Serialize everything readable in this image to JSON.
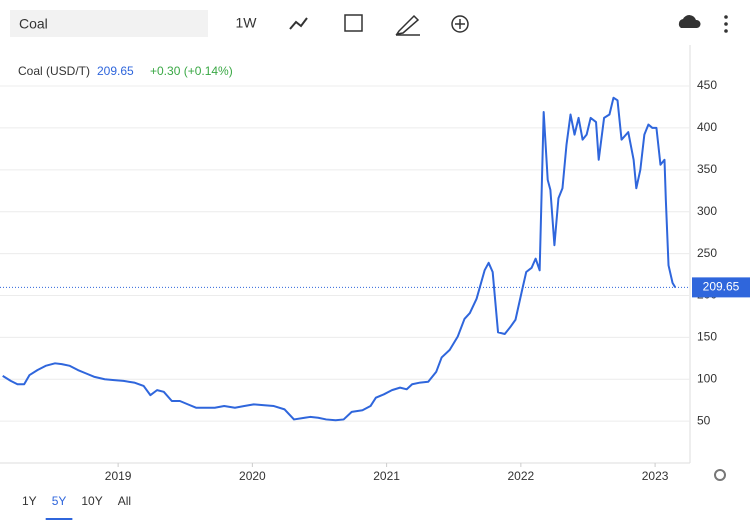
{
  "toolbar": {
    "search": "Coal",
    "interval": "1W"
  },
  "chart_data": {
    "type": "line",
    "last_value": 209.65,
    "change": "+0.30 (+0.14%)",
    "x": [
      2018.14,
      2018.2,
      2018.25,
      2018.3,
      2018.34,
      2018.4,
      2018.46,
      2018.53,
      2018.58,
      2018.64,
      2018.7,
      2018.76,
      2018.82,
      2018.9,
      2018.97,
      2019.04,
      2019.12,
      2019.19,
      2019.24,
      2019.29,
      2019.34,
      2019.4,
      2019.46,
      2019.52,
      2019.58,
      2019.64,
      2019.72,
      2019.79,
      2019.87,
      2019.94,
      2020.01,
      2020.09,
      2020.16,
      2020.24,
      2020.31,
      2020.39,
      2020.43,
      2020.49,
      2020.55,
      2020.62,
      2020.68,
      2020.74,
      2020.82,
      2020.88,
      2020.92,
      2020.98,
      2021.04,
      2021.1,
      2021.15,
      2021.19,
      2021.25,
      2021.31,
      2021.37,
      2021.41,
      2021.47,
      2021.53,
      2021.58,
      2021.62,
      2021.67,
      2021.73,
      2021.76,
      2021.79,
      2021.83,
      2021.88,
      2021.92,
      2021.96,
      2022.01,
      2022.04,
      2022.08,
      2022.11,
      2022.14,
      2022.17,
      2022.2,
      2022.22,
      2022.25,
      2022.28,
      2022.31,
      2022.34,
      2022.37,
      2022.4,
      2022.43,
      2022.46,
      2022.49,
      2022.52,
      2022.56,
      2022.58,
      2022.62,
      2022.66,
      2022.69,
      2022.72,
      2022.75,
      2022.8,
      2022.84,
      2022.86,
      2022.89,
      2022.92,
      2022.95,
      2022.98,
      2023.01,
      2023.04,
      2023.07,
      2023.08,
      2023.1,
      2023.13,
      2023.15
    ],
    "series": [
      {
        "name": "Coal (USD/T)",
        "color": "#2f66dc",
        "values": [
          104,
          98,
          94,
          94,
          105,
          111,
          116,
          119,
          118,
          116,
          111,
          107,
          103,
          100,
          99,
          98,
          96,
          92,
          81,
          87,
          85,
          74,
          74,
          70,
          66,
          66,
          66,
          68,
          66,
          68,
          70,
          69,
          68,
          64,
          52,
          54,
          55,
          54,
          52,
          51,
          52,
          61,
          63,
          68,
          78,
          82,
          87,
          90,
          88,
          94,
          96,
          97,
          109,
          126,
          135,
          151,
          172,
          179,
          196,
          230,
          239,
          228,
          156,
          154,
          162,
          171,
          207,
          228,
          233,
          244,
          230,
          419,
          338,
          326,
          260,
          316,
          328,
          380,
          416,
          392,
          412,
          386,
          392,
          412,
          407,
          362,
          412,
          416,
          436,
          433,
          386,
          395,
          362,
          328,
          350,
          392,
          404,
          400,
          400,
          356,
          362,
          314,
          236,
          215,
          209.65
        ]
      }
    ],
    "xlim": [
      2018.12,
      2023.26
    ],
    "xticks": [
      2019,
      2020,
      2021,
      2022,
      2023
    ],
    "ylim": [
      0,
      499
    ],
    "yticks": [
      50,
      100,
      150,
      200,
      250,
      300,
      350,
      400,
      450
    ],
    "grid": true,
    "ranges": [
      "1Y",
      "5Y",
      "10Y",
      "All"
    ],
    "active_range": 1
  }
}
